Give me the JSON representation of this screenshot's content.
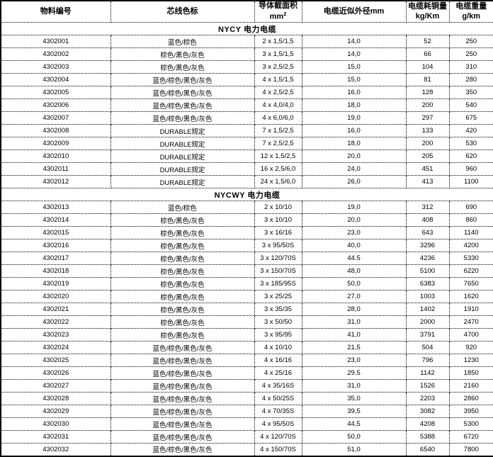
{
  "page": {
    "background": "#ffffff",
    "grid_color": "#000000"
  },
  "table": {
    "columns": [
      {
        "id": "material-id",
        "line1": "物料编号"
      },
      {
        "id": "color-code",
        "line1": "芯线色标"
      },
      {
        "id": "conductor-area",
        "line1": "导体截面积",
        "line2": "mm",
        "line2_sup": "2"
      },
      {
        "id": "outer-diameter",
        "line1": "电缆近似外径mm"
      },
      {
        "id": "copper-consumption",
        "line1": "电缆耗铜量",
        "line2": "kg/Km"
      },
      {
        "id": "cable-weight",
        "line1": "电缆重量",
        "line2": "g/km"
      }
    ],
    "sections": [
      {
        "title": "NYCY  电力电缆",
        "rows": [
          [
            "4302001",
            "蓝色/棕色",
            "2 x 1,5/1,5",
            "14,0",
            "52",
            "250"
          ],
          [
            "4302002",
            "棕色/黑色/灰色",
            "3 x 1,5/1,5",
            "14,0",
            "66",
            "250"
          ],
          [
            "4302003",
            "棕色/黑色/灰色",
            "3 x 2,5/2,5",
            "15,0",
            "104",
            "310"
          ],
          [
            "4302004",
            "蓝色/棕色/黑色/灰色",
            "4 x 1,5/1,5",
            "15,0",
            "81",
            "280"
          ],
          [
            "4302005",
            "蓝色/棕色/黑色/灰色",
            "4 x 2,5/2,5",
            "16,0",
            "128",
            "350"
          ],
          [
            "4302006",
            "蓝色/棕色/黑色/灰色",
            "4 x 4,0/4,0",
            "18,0",
            "200",
            "540"
          ],
          [
            "4302007",
            "蓝色/棕色/黑色/灰色",
            "4 x 6,0/6,0",
            "19,0",
            "297",
            "675"
          ],
          [
            "4302008",
            "DURABLE规定",
            "7 x 1,5/2,5",
            "16,0",
            "133",
            "420"
          ],
          [
            "4302009",
            "DURABLE规定",
            "7 x 2,5/2,5",
            "18,0",
            "200",
            "530"
          ],
          [
            "4302010",
            "DURABLE规定",
            "12 x 1,5/2,5",
            "20,0",
            "205",
            "620"
          ],
          [
            "4302011",
            "DURABLE规定",
            "16 x 2,5/6,0",
            "24,0",
            "451",
            "960"
          ],
          [
            "4302012",
            "DURABLE规定",
            "24 x 1,5/6,0",
            "26,0",
            "413",
            "1100"
          ]
        ]
      },
      {
        "title": "NYCWY  电力电缆",
        "rows": [
          [
            "4302013",
            "蓝色/棕色",
            "2 x 10/10",
            "19,0",
            "312",
            "690"
          ],
          [
            "4302014",
            "棕色/黑色/灰色",
            "3 x 10/10",
            "20,0",
            "408",
            "860"
          ],
          [
            "4302015",
            "棕色/黑色/灰色",
            "3 x 16/16",
            "23,0",
            "643",
            "1140"
          ],
          [
            "4302016",
            "棕色/黑色/灰色",
            "3 x 95/50S",
            "40,0",
            "3296",
            "4200"
          ],
          [
            "4302017",
            "棕色/黑色/灰色",
            "3 x 120/70S",
            "44.5",
            "4236",
            "5330"
          ],
          [
            "4302018",
            "棕色/黑色/灰色",
            "3 x 150/70S",
            "48,0",
            "5100",
            "6220"
          ],
          [
            "4302019",
            "棕色/黑色/灰色",
            "3 x 185/95S",
            "50,0",
            "6383",
            "7650"
          ],
          [
            "4302020",
            "棕色/黑色/灰色",
            "3 x 25/25",
            "27,0",
            "1003",
            "1620"
          ],
          [
            "4302021",
            "棕色/黑色/灰色",
            "3 x 35/35",
            "28,0",
            "1402",
            "1910"
          ],
          [
            "4302022",
            "棕色/黑色/灰色",
            "3 x 50/50",
            "31,0",
            "2000",
            "2470"
          ],
          [
            "4302023",
            "棕色/黑色/灰色",
            "3 x 95/95",
            "41,0",
            "3791",
            "4700"
          ],
          [
            "4302024",
            "蓝色/棕色/黑色/灰色",
            "4 x 10/10",
            "21,5",
            "504",
            "920"
          ],
          [
            "4302025",
            "蓝色/棕色/黑色/灰色",
            "4 x 16/16",
            "23,0",
            "796",
            "1230"
          ],
          [
            "4302026",
            "蓝色/棕色/黑色/灰色",
            "4 x 25/16",
            "29.5",
            "1142",
            "1850"
          ],
          [
            "4302027",
            "蓝色/棕色/黑色/灰色",
            "4 x 35/16S",
            "31,0",
            "1526",
            "2160"
          ],
          [
            "4302028",
            "蓝色/棕色/黑色/灰色",
            "4 x 50/25S",
            "35,0",
            "2203",
            "2860"
          ],
          [
            "4302029",
            "蓝色/棕色/黑色/灰色",
            "4 x 70/35S",
            "39,5",
            "3082",
            "3950"
          ],
          [
            "4302030",
            "蓝色/棕色/黑色/灰色",
            "4 x 95/50S",
            "44,5",
            "4208",
            "5300"
          ],
          [
            "4302031",
            "蓝色/棕色/黑色/灰色",
            "4 x 120/70S",
            "50,0",
            "5388",
            "6720"
          ],
          [
            "4302032",
            "蓝色/棕色/黑色/灰色",
            "4 x 150/70S",
            "51,0",
            "6540",
            "7800"
          ]
        ]
      }
    ]
  }
}
